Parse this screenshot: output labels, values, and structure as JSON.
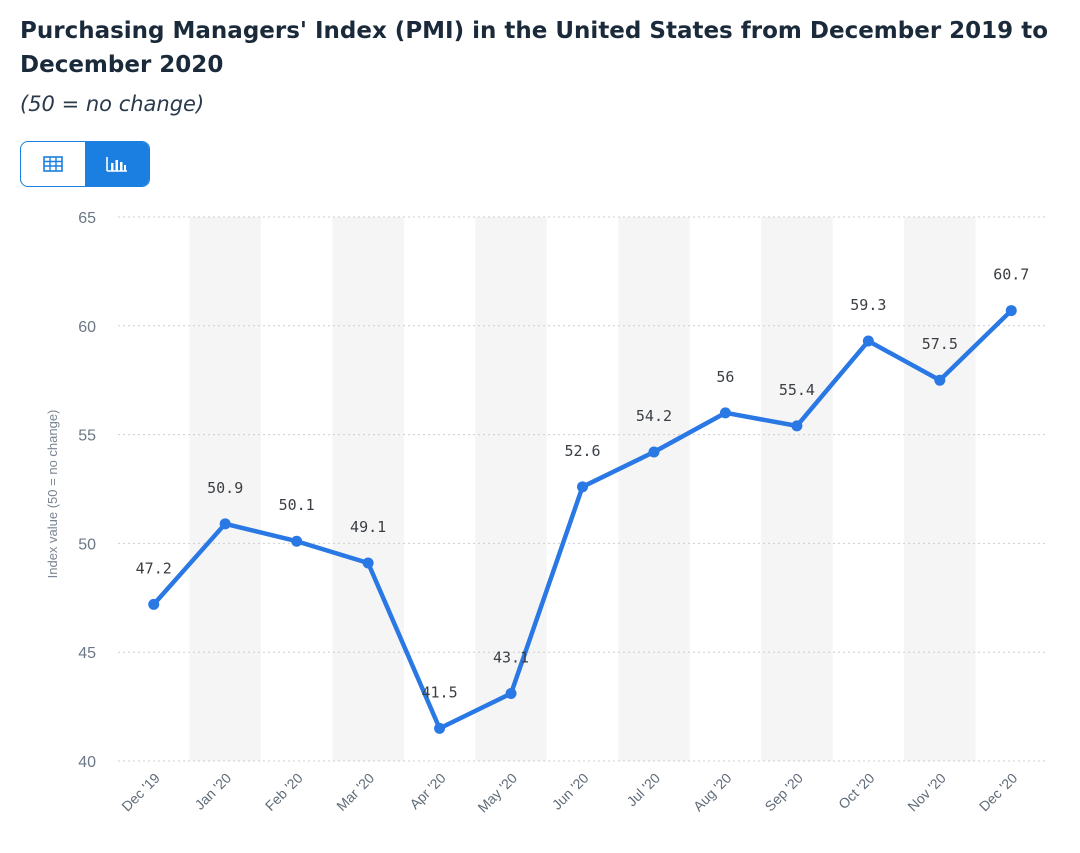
{
  "header": {
    "title": "Purchasing Managers' Index (PMI) in the United States from December 2019 to December 2020",
    "subtitle": "(50 = no change)"
  },
  "view_toggle": {
    "options": [
      {
        "icon": "table-icon",
        "active": false
      },
      {
        "icon": "bar-chart-icon",
        "active": true
      }
    ],
    "accent": "#1a7fe0"
  },
  "chart_data": {
    "type": "line",
    "title": "Purchasing Managers' Index (PMI) in the United States from December 2019 to December 2020",
    "subtitle": "(50 = no change)",
    "xlabel": "",
    "ylabel": "Index value (50 = no change)",
    "categories": [
      "Dec '19",
      "Jan '20",
      "Feb '20",
      "Mar '20",
      "Apr '20",
      "May '20",
      "Jun '20",
      "Jul '20",
      "Aug '20",
      "Sep '20",
      "Oct '20",
      "Nov '20",
      "Dec '20"
    ],
    "series": [
      {
        "values": [
          47.2,
          50.9,
          50.1,
          49.1,
          41.5,
          43.1,
          52.6,
          54.2,
          56,
          55.4,
          59.3,
          57.5,
          60.7
        ]
      }
    ],
    "data_labels": [
      "47.2",
      "50.9",
      "50.1",
      "49.1",
      "41.5",
      "43.1",
      "52.6",
      "54.2",
      "56",
      "55.4",
      "59.3",
      "57.5",
      "60.7"
    ],
    "ylim": [
      40,
      65
    ],
    "yticks": [
      "40",
      "45",
      "50",
      "55",
      "60",
      "65"
    ],
    "grid": "horizontal dotted",
    "alternating_column_shading": true,
    "line_color": "#2a78e4"
  }
}
